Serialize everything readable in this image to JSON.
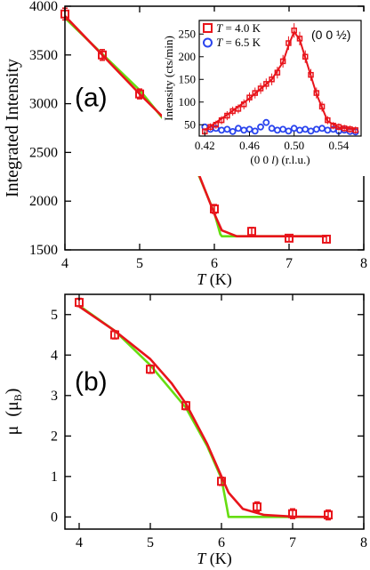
{
  "chart_data": [
    {
      "type": "scatter",
      "panel_label": "(a)",
      "xlabel_italic": "T",
      "xlabel_rest": " (K)",
      "ylabel": "Integrated Intensity",
      "xlim": [
        4,
        8
      ],
      "ylim": [
        1500,
        4000
      ],
      "xticks": [
        4,
        5,
        6,
        7,
        8
      ],
      "yticks": [
        1500,
        2000,
        2500,
        3000,
        3500,
        4000
      ],
      "points": {
        "x": [
          4.0,
          4.5,
          5.0,
          5.5,
          6.0,
          6.5,
          7.0,
          7.5
        ],
        "y": [
          3920,
          3500,
          3100,
          2690,
          1920,
          1690,
          1620,
          1610
        ],
        "err": [
          60,
          55,
          50,
          45,
          45,
          40,
          35,
          35
        ],
        "color": "#e8141b"
      },
      "fits": [
        {
          "color": "#66dd11",
          "x": [
            4.0,
            4.5,
            5.0,
            5.5,
            5.8,
            6.0,
            6.08,
            6.1,
            7.5
          ],
          "y": [
            3880,
            3510,
            3140,
            2670,
            2250,
            1880,
            1660,
            1640,
            1640
          ]
        },
        {
          "color": "#e8141b",
          "x": [
            4.0,
            4.5,
            5.0,
            5.5,
            5.8,
            6.0,
            6.1,
            6.3,
            7.0,
            7.5
          ],
          "y": [
            3900,
            3500,
            3100,
            2720,
            2260,
            1870,
            1700,
            1640,
            1640,
            1640
          ]
        }
      ],
      "inset": {
        "ylabel": "Intensity (cts/min)",
        "xlabel_parts": [
          "(0 0 ",
          "l",
          ") (r.l.u.)"
        ],
        "xlim": [
          0.415,
          0.56
        ],
        "ylim": [
          25,
          280
        ],
        "xticks": [
          0.42,
          0.46,
          0.5,
          0.54
        ],
        "xticklabels": [
          "0.42",
          "0.46",
          "0.50",
          "0.54"
        ],
        "yticks": [
          50,
          100,
          150,
          200,
          250
        ],
        "annotation": "(0 0 ½)",
        "legend": [
          {
            "label_italic": "T",
            "label_rest": " = 4.0 K",
            "color": "#e8141b"
          },
          {
            "label_italic": "T",
            "label_rest": " = 6.5 K",
            "color": "#2a44ee"
          }
        ],
        "series_hot": {
          "color": "#e8141b",
          "x": [
            0.42,
            0.425,
            0.43,
            0.435,
            0.44,
            0.445,
            0.45,
            0.455,
            0.46,
            0.465,
            0.47,
            0.475,
            0.48,
            0.485,
            0.49,
            0.495,
            0.5,
            0.505,
            0.51,
            0.515,
            0.52,
            0.525,
            0.53,
            0.535,
            0.54,
            0.545,
            0.55,
            0.555
          ],
          "y": [
            35,
            45,
            50,
            60,
            70,
            80,
            85,
            95,
            110,
            120,
            130,
            140,
            150,
            165,
            190,
            230,
            258,
            240,
            200,
            160,
            120,
            90,
            60,
            48,
            45,
            42,
            40,
            38
          ],
          "err": [
            8,
            8,
            9,
            9,
            10,
            10,
            10,
            11,
            11,
            12,
            12,
            12,
            13,
            13,
            14,
            15,
            16,
            15,
            14,
            13,
            12,
            11,
            9,
            8,
            8,
            8,
            8,
            8
          ]
        },
        "series_cold": {
          "color": "#2a44ee",
          "x": [
            0.42,
            0.425,
            0.43,
            0.435,
            0.44,
            0.445,
            0.45,
            0.455,
            0.46,
            0.465,
            0.47,
            0.475,
            0.48,
            0.485,
            0.49,
            0.495,
            0.5,
            0.505,
            0.51,
            0.515,
            0.52,
            0.525,
            0.53,
            0.535,
            0.54,
            0.545,
            0.55,
            0.555
          ],
          "y": [
            45,
            40,
            42,
            38,
            40,
            35,
            42,
            38,
            40,
            36,
            45,
            55,
            42,
            38,
            40,
            36,
            42,
            38,
            40,
            36,
            40,
            42,
            38,
            40,
            36,
            38,
            35,
            34
          ]
        },
        "fit": {
          "color": "#e8141b",
          "x": [
            0.42,
            0.44,
            0.46,
            0.48,
            0.49,
            0.495,
            0.5,
            0.505,
            0.51,
            0.52,
            0.53,
            0.54,
            0.555
          ],
          "y": [
            38,
            72,
            108,
            150,
            188,
            225,
            255,
            238,
            198,
            118,
            58,
            44,
            40
          ]
        }
      }
    },
    {
      "type": "scatter",
      "panel_label": "(b)",
      "xlabel_italic": "T",
      "xlabel_rest": " (K)",
      "ylabel_main": "μ",
      "ylabel_unit": "(μ",
      "ylabel_sub": "B",
      "ylabel_close": ")",
      "xlim": [
        3.8,
        8
      ],
      "ylim": [
        -0.3,
        5.5
      ],
      "xticks": [
        4,
        5,
        6,
        7,
        8
      ],
      "yticks": [
        0,
        1,
        2,
        3,
        4,
        5
      ],
      "points": {
        "x": [
          4.0,
          4.5,
          5.0,
          5.5,
          6.0,
          6.5,
          7.0,
          7.5
        ],
        "y": [
          5.3,
          4.5,
          3.65,
          2.75,
          0.88,
          0.25,
          0.08,
          0.05
        ],
        "err": [
          0.1,
          0.1,
          0.1,
          0.1,
          0.1,
          0.12,
          0.12,
          0.12
        ],
        "color": "#e8141b"
      },
      "fits": [
        {
          "color": "#66dd11",
          "x": [
            4.0,
            4.5,
            5.0,
            5.5,
            5.8,
            6.0,
            6.08,
            6.1,
            7.5
          ],
          "y": [
            5.22,
            4.6,
            3.75,
            2.7,
            1.75,
            0.95,
            0.2,
            0.0,
            0.0
          ]
        },
        {
          "color": "#e8141b",
          "x": [
            4.0,
            4.5,
            5.0,
            5.3,
            5.5,
            5.8,
            6.0,
            6.1,
            6.3,
            6.6,
            7.0,
            7.5
          ],
          "y": [
            5.2,
            4.6,
            3.9,
            3.3,
            2.8,
            1.8,
            1.0,
            0.6,
            0.2,
            0.05,
            0.01,
            0.0
          ]
        }
      ]
    }
  ]
}
